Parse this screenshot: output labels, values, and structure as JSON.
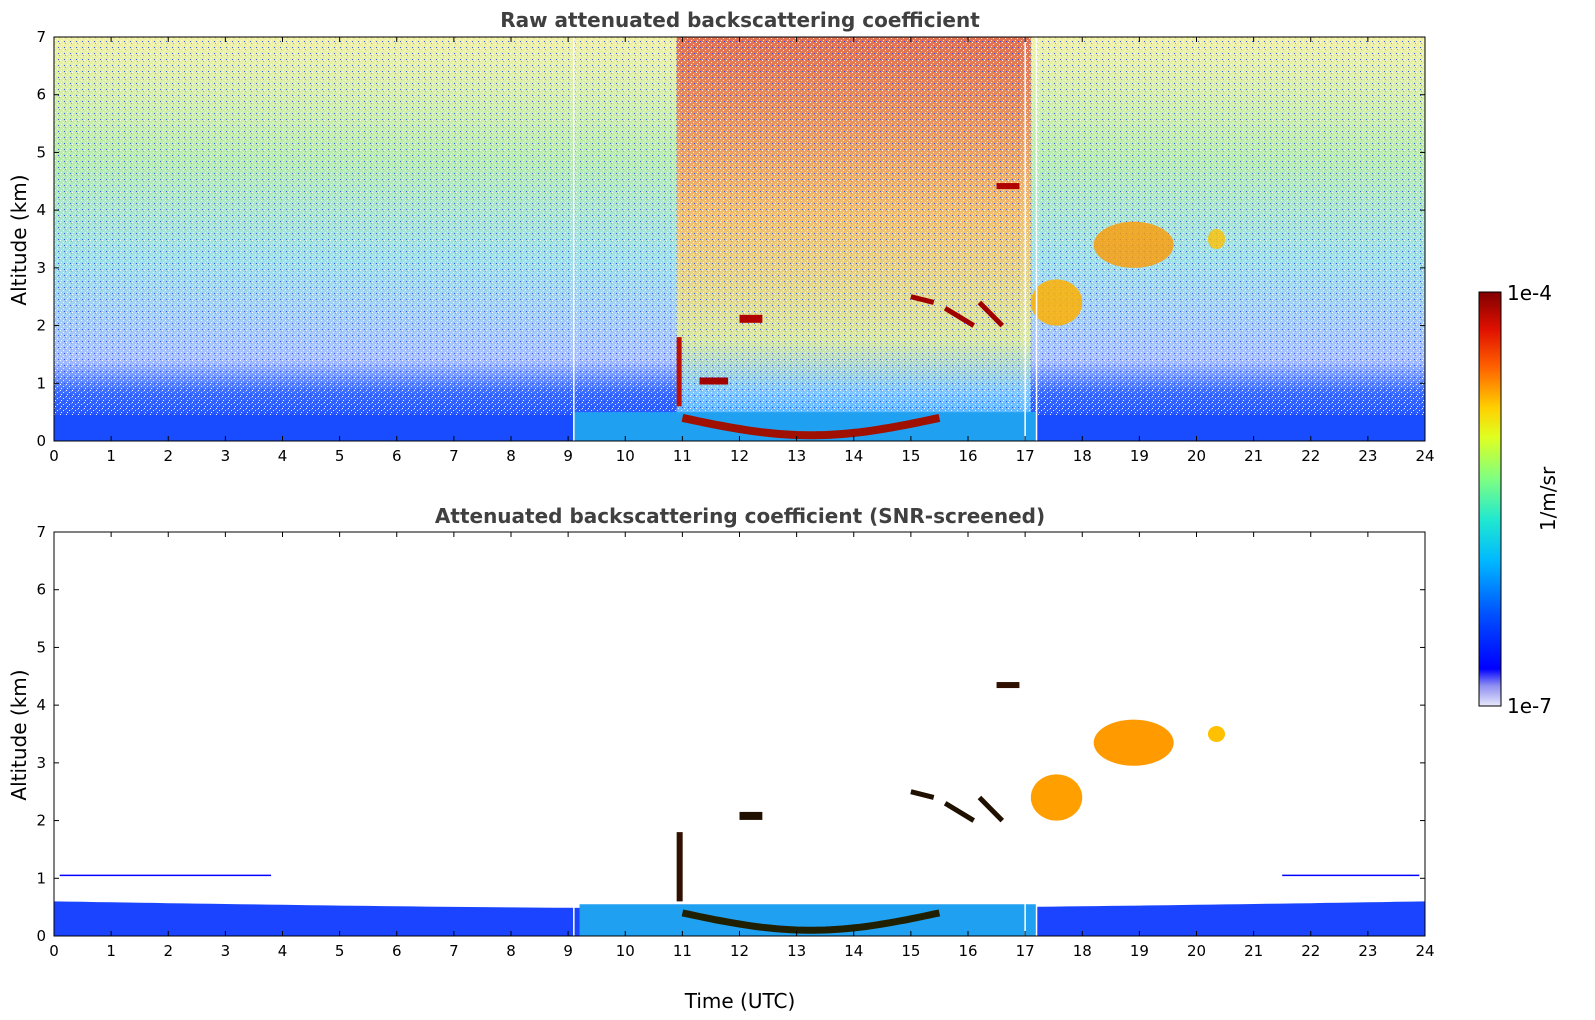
{
  "chart_data": [
    {
      "type": "heatmap",
      "title": "Raw attenuated backscattering coefficient",
      "xlabel": "",
      "ylabel": "Altitude (km)",
      "xlim": [
        0,
        24
      ],
      "ylim": [
        0,
        7
      ],
      "xticks": [
        0,
        1,
        2,
        3,
        4,
        5,
        6,
        7,
        8,
        9,
        10,
        11,
        12,
        13,
        14,
        15,
        16,
        17,
        18,
        19,
        20,
        21,
        22,
        23,
        24
      ],
      "yticks": [
        0,
        1,
        2,
        3,
        4,
        5,
        6,
        7
      ],
      "scale": "log",
      "colorbar_range": [
        "1e-7",
        "1e-4"
      ],
      "features": [
        {
          "kind": "boundary_layer",
          "x": [
            0,
            24
          ],
          "top_km": 0.45
        },
        {
          "kind": "cloud_base",
          "x": [
            11,
            15.5
          ],
          "y_km": [
            0.1,
            0.5
          ]
        },
        {
          "kind": "cloud_layer",
          "x": [
            12,
            12.4
          ],
          "y_km": 2.1
        },
        {
          "kind": "cloud_layer",
          "x": [
            15,
            16.6
          ],
          "y_km": [
            2.0,
            2.6
          ]
        },
        {
          "kind": "cloud_layer",
          "x": [
            16.5,
            16.9
          ],
          "y_km": 4.4
        },
        {
          "kind": "aerosol_layer",
          "x": [
            17.1,
            18.0
          ],
          "y_km": [
            2.0,
            2.8
          ]
        },
        {
          "kind": "aerosol_layer",
          "x": [
            18.2,
            19.6
          ],
          "y_km": [
            3.0,
            3.8
          ]
        },
        {
          "kind": "aerosol_layer",
          "x": [
            20.2,
            20.5
          ],
          "y_km": 3.5
        }
      ]
    },
    {
      "type": "heatmap",
      "title": "Attenuated backscattering coefficient (SNR-screened)",
      "xlabel": "Time (UTC)",
      "ylabel": "Altitude (km)",
      "xlim": [
        0,
        24
      ],
      "ylim": [
        0,
        7
      ],
      "xticks": [
        0,
        1,
        2,
        3,
        4,
        5,
        6,
        7,
        8,
        9,
        10,
        11,
        12,
        13,
        14,
        15,
        16,
        17,
        18,
        19,
        20,
        21,
        22,
        23,
        24
      ],
      "yticks": [
        0,
        1,
        2,
        3,
        4,
        5,
        6,
        7
      ],
      "scale": "log",
      "colorbar_range": [
        "1e-7",
        "1e-4"
      ]
    }
  ],
  "colorbar": {
    "label": "1/m/sr",
    "max_label": "1e-4",
    "min_label": "1e-7"
  }
}
